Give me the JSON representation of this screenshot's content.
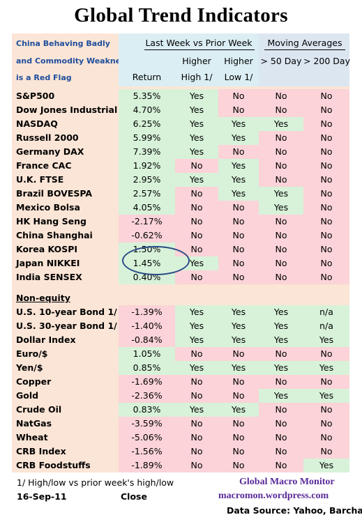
{
  "title": "Global Trend Indicators",
  "header": {
    "note_lines": [
      "China Behaving Badly",
      "and Commodity Weakness",
      "is a Red Flag"
    ],
    "group_week": "Last Week vs Prior Week",
    "group_ma": "Moving Averages",
    "col_return": "Return",
    "col_hh_1": "Higher",
    "col_hh_2": "High 1/",
    "col_hl_1": "Higher",
    "col_hl_2": "Low 1/",
    "col_50": "> 50 Day",
    "col_200": "> 200 Day"
  },
  "equity_rows": [
    {
      "name": "S&P500",
      "ret": "5.35%",
      "hh": "Yes",
      "hl": "No",
      "ma50": "No",
      "ma200": "No"
    },
    {
      "name": "Dow Jones Industrial",
      "ret": "4.70%",
      "hh": "Yes",
      "hl": "No",
      "ma50": "No",
      "ma200": "No"
    },
    {
      "name": "NASDAQ",
      "ret": "6.25%",
      "hh": "Yes",
      "hl": "Yes",
      "ma50": "Yes",
      "ma200": "No"
    },
    {
      "name": "Russell 2000",
      "ret": "5.99%",
      "hh": "Yes",
      "hl": "Yes",
      "ma50": "No",
      "ma200": "No"
    },
    {
      "name": "Germany DAX",
      "ret": "7.39%",
      "hh": "Yes",
      "hl": "No",
      "ma50": "No",
      "ma200": "No"
    },
    {
      "name": "France CAC",
      "ret": "1.92%",
      "hh": "No",
      "hl": "Yes",
      "ma50": "No",
      "ma200": "No"
    },
    {
      "name": "U.K. FTSE",
      "ret": "2.95%",
      "hh": "Yes",
      "hl": "Yes",
      "ma50": "No",
      "ma200": "No"
    },
    {
      "name": "Brazil BOVESPA",
      "ret": "2.57%",
      "hh": "No",
      "hl": "Yes",
      "ma50": "Yes",
      "ma200": "No"
    },
    {
      "name": "Mexico Bolsa",
      "ret": "4.05%",
      "hh": "No",
      "hl": "No",
      "ma50": "Yes",
      "ma200": "No"
    },
    {
      "name": "HK  Hang Seng",
      "ret": "-2.17%",
      "hh": "No",
      "hl": "No",
      "ma50": "No",
      "ma200": "No"
    },
    {
      "name": "China Shanghai",
      "ret": "-0.62%",
      "hh": "No",
      "hl": "No",
      "ma50": "No",
      "ma200": "No"
    },
    {
      "name": "Korea KOSPI",
      "ret": "1.50%",
      "hh": "No",
      "hl": "No",
      "ma50": "No",
      "ma200": "No"
    },
    {
      "name": "Japan NIKKEI",
      "ret": "1.45%",
      "hh": "Yes",
      "hl": "No",
      "ma50": "No",
      "ma200": "No"
    },
    {
      "name": "India SENSEX",
      "ret": "0.40%",
      "hh": "No",
      "hl": "No",
      "ma50": "No",
      "ma200": "No"
    }
  ],
  "nonequity_label": "Non-equity",
  "nonequity_rows": [
    {
      "name": "U.S. 10-year Bond 1/",
      "ret": "-1.39%",
      "hh": "Yes",
      "hl": "Yes",
      "ma50": "Yes",
      "ma200": "n/a"
    },
    {
      "name": "U.S. 30-year Bond 1/",
      "ret": "-1.40%",
      "hh": "Yes",
      "hl": "Yes",
      "ma50": "Yes",
      "ma200": "n/a"
    },
    {
      "name": "Dollar Index",
      "ret": "-0.84%",
      "hh": "Yes",
      "hl": "Yes",
      "ma50": "Yes",
      "ma200": "Yes"
    },
    {
      "name": "Euro/$",
      "ret": "1.05%",
      "hh": "No",
      "hl": "No",
      "ma50": "No",
      "ma200": "No"
    },
    {
      "name": "Yen/$",
      "ret": "0.85%",
      "hh": "Yes",
      "hl": "Yes",
      "ma50": "Yes",
      "ma200": "Yes"
    },
    {
      "name": "Copper",
      "ret": "-1.69%",
      "hh": "No",
      "hl": "No",
      "ma50": "No",
      "ma200": "No"
    },
    {
      "name": "Gold",
      "ret": "-2.36%",
      "hh": "No",
      "hl": "No",
      "ma50": "Yes",
      "ma200": "Yes"
    },
    {
      "name": "Crude Oil",
      "ret": "0.83%",
      "hh": "Yes",
      "hl": "Yes",
      "ma50": "No",
      "ma200": "No"
    },
    {
      "name": "NatGas",
      "ret": "-3.59%",
      "hh": "No",
      "hl": "No",
      "ma50": "No",
      "ma200": "No"
    },
    {
      "name": "Wheat",
      "ret": "-5.06%",
      "hh": "No",
      "hl": "No",
      "ma50": "No",
      "ma200": "No"
    },
    {
      "name": "CRB Index",
      "ret": "-1.56%",
      "hh": "No",
      "hl": "No",
      "ma50": "No",
      "ma200": "No"
    },
    {
      "name": "CRB Foodstuffs",
      "ret": "-1.89%",
      "hh": "No",
      "hl": "No",
      "ma50": "No",
      "ma200": "Yes"
    }
  ],
  "footer": {
    "footnote": "1/  High/low vs prior week's high/low",
    "date": "16-Sep-11",
    "close": "Close",
    "brand": "Global Macro Monitor",
    "site": "macromon.wordpress.com",
    "source": "Data Source: Yahoo, Barchart"
  },
  "colors": {
    "positive": "#d7f2d9",
    "negative": "#fbd3d8",
    "label_bg": "#fbe5d6",
    "header_bg": "#dbeef4",
    "highlight_ellipse": "#2a4a86"
  }
}
